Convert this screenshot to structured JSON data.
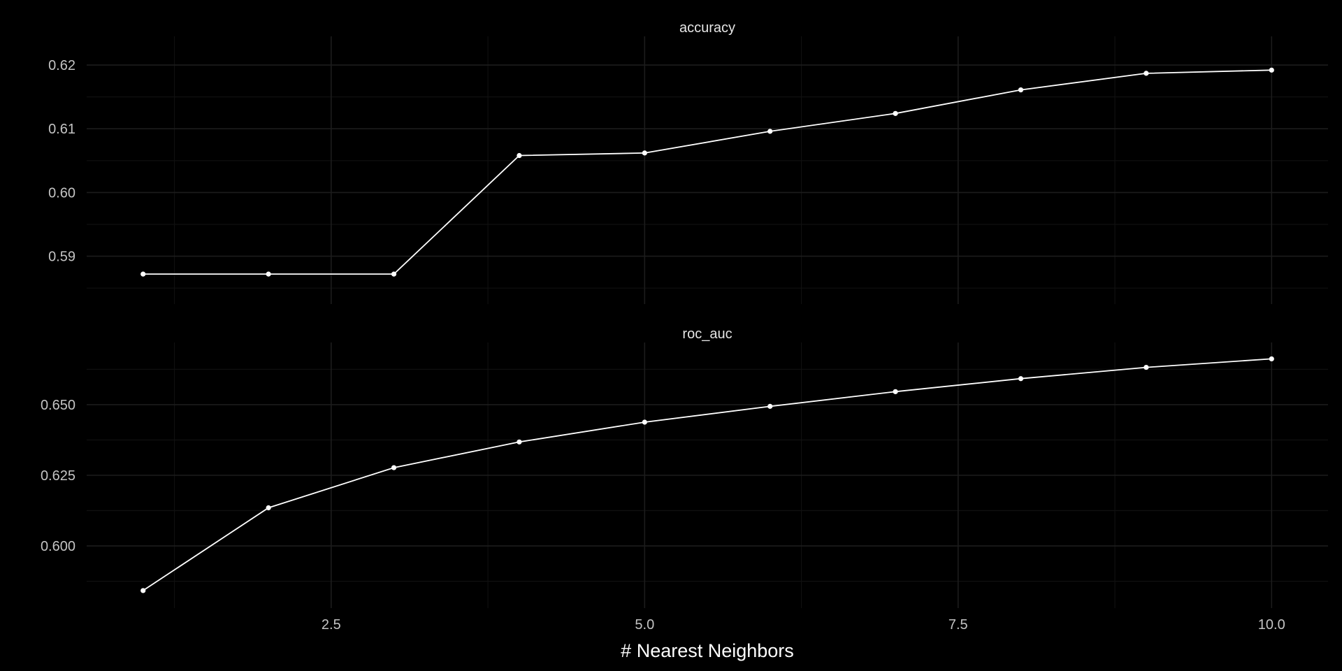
{
  "colors": {
    "background": "#000000",
    "grid_major": "#1c1c1c",
    "grid_minor": "#101010",
    "line": "#ffffff",
    "text": "#c4c4c4"
  },
  "chart_data": {
    "type": "line",
    "xlabel": "# Nearest Neighbors",
    "x_ticks": [
      "2.5",
      "5.0",
      "7.5",
      "10.0"
    ],
    "x_tick_values": [
      2.5,
      5.0,
      7.5,
      10.0
    ],
    "xlim": [
      0.55,
      10.45
    ],
    "grid": true,
    "legend": "none",
    "facets": [
      {
        "title": "accuracy",
        "x": [
          1,
          2,
          3,
          4,
          5,
          6,
          7,
          8,
          9,
          10
        ],
        "values": [
          0.5872,
          0.5872,
          0.5872,
          0.6058,
          0.6062,
          0.6096,
          0.6124,
          0.6161,
          0.6187,
          0.6192
        ],
        "y_ticks": [
          "0.59",
          "0.60",
          "0.61",
          "0.62"
        ],
        "y_tick_values": [
          0.59,
          0.6,
          0.61,
          0.62
        ],
        "ylim": [
          0.5825,
          0.6245
        ]
      },
      {
        "title": "roc_auc",
        "x": [
          1,
          2,
          3,
          4,
          5,
          6,
          7,
          8,
          9,
          10
        ],
        "values": [
          0.5842,
          0.6135,
          0.6277,
          0.6368,
          0.6438,
          0.6494,
          0.6546,
          0.6592,
          0.6632,
          0.6662
        ],
        "y_ticks": [
          "0.600",
          "0.625",
          "0.650"
        ],
        "y_tick_values": [
          0.6,
          0.625,
          0.65
        ],
        "ylim": [
          0.578,
          0.672
        ]
      }
    ]
  }
}
